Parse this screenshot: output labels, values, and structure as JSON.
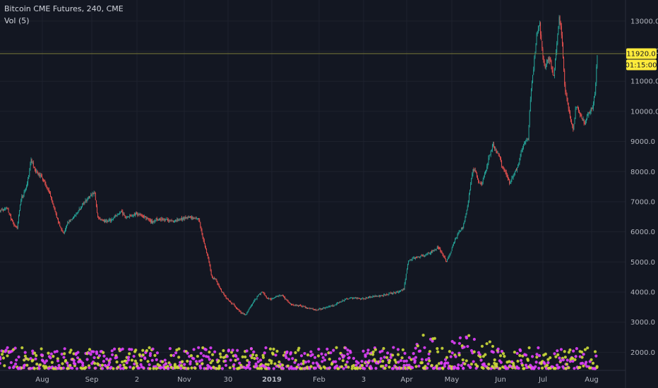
{
  "legend": {
    "title": "Bitcoin CME Futures, 240, CME",
    "volume": "Vol (5)"
  },
  "price_tag": {
    "value": "11920.0",
    "countdown": "01:15:00",
    "color": "#ffeb3b"
  },
  "colors": {
    "background": "#131722",
    "grid": "#1e222d",
    "up": "#26a69a",
    "down": "#ef5350",
    "volume_up": "#cddc39",
    "volume_down": "#e040fb",
    "last_price_line": "#7b7b3a"
  },
  "chart_data": {
    "type": "line",
    "y_axis": {
      "range": [
        1400,
        13700
      ],
      "ticks": [
        {
          "value": 2000,
          "label": "2000.0"
        },
        {
          "value": 3000,
          "label": "3000.0"
        },
        {
          "value": 4000,
          "label": "4000.0"
        },
        {
          "value": 5000,
          "label": "5000.0"
        },
        {
          "value": 6000,
          "label": "6000.0"
        },
        {
          "value": 7000,
          "label": "7000.0"
        },
        {
          "value": 8000,
          "label": "8000.0"
        },
        {
          "value": 9000,
          "label": "9000.0"
        },
        {
          "value": 10000,
          "label": "10000.0"
        },
        {
          "value": 11000,
          "label": "11000.0"
        },
        {
          "value": 12000,
          "label": "12000.0"
        },
        {
          "value": 13000,
          "label": "13000.0"
        }
      ]
    },
    "x_axis": {
      "range": [
        0,
        880
      ],
      "ticks": [
        {
          "label": "Aug",
          "pos": 60
        },
        {
          "label": "Sep",
          "pos": 130
        },
        {
          "label": "2",
          "pos": 194
        },
        {
          "label": "Nov",
          "pos": 261
        },
        {
          "label": "30",
          "pos": 323
        },
        {
          "label": "2019",
          "pos": 385
        },
        {
          "label": "Feb",
          "pos": 452
        },
        {
          "label": "3",
          "pos": 515
        },
        {
          "label": "Apr",
          "pos": 576
        },
        {
          "label": "May",
          "pos": 640
        },
        {
          "label": "Jun",
          "pos": 709
        },
        {
          "label": "Jul",
          "pos": 769
        },
        {
          "label": "Aug",
          "pos": 838
        }
      ]
    },
    "series": [
      {
        "points": [
          [
            0,
            6700
          ],
          [
            10,
            6800
          ],
          [
            18,
            6300
          ],
          [
            24,
            6100
          ],
          [
            30,
            7100
          ],
          [
            38,
            7500
          ],
          [
            44,
            8400
          ],
          [
            50,
            8000
          ],
          [
            56,
            7900
          ],
          [
            62,
            7700
          ],
          [
            68,
            7400
          ],
          [
            74,
            7000
          ],
          [
            80,
            6500
          ],
          [
            86,
            6100
          ],
          [
            90,
            5950
          ],
          [
            96,
            6300
          ],
          [
            104,
            6500
          ],
          [
            112,
            6750
          ],
          [
            120,
            7000
          ],
          [
            128,
            7200
          ],
          [
            134,
            7300
          ],
          [
            138,
            6500
          ],
          [
            144,
            6400
          ],
          [
            150,
            6350
          ],
          [
            158,
            6400
          ],
          [
            166,
            6600
          ],
          [
            172,
            6650
          ],
          [
            178,
            6500
          ],
          [
            186,
            6550
          ],
          [
            194,
            6600
          ],
          [
            202,
            6500
          ],
          [
            210,
            6450
          ],
          [
            216,
            6300
          ],
          [
            222,
            6450
          ],
          [
            228,
            6400
          ],
          [
            236,
            6400
          ],
          [
            244,
            6350
          ],
          [
            252,
            6400
          ],
          [
            260,
            6450
          ],
          [
            268,
            6500
          ],
          [
            276,
            6450
          ],
          [
            282,
            6400
          ],
          [
            288,
            5700
          ],
          [
            294,
            5200
          ],
          [
            300,
            4500
          ],
          [
            306,
            4400
          ],
          [
            312,
            4100
          ],
          [
            318,
            3900
          ],
          [
            324,
            3700
          ],
          [
            330,
            3600
          ],
          [
            336,
            3450
          ],
          [
            342,
            3300
          ],
          [
            348,
            3250
          ],
          [
            354,
            3500
          ],
          [
            360,
            3700
          ],
          [
            366,
            3900
          ],
          [
            372,
            4000
          ],
          [
            378,
            3800
          ],
          [
            384,
            3750
          ],
          [
            392,
            3850
          ],
          [
            400,
            3900
          ],
          [
            408,
            3650
          ],
          [
            416,
            3550
          ],
          [
            424,
            3550
          ],
          [
            432,
            3500
          ],
          [
            440,
            3450
          ],
          [
            448,
            3400
          ],
          [
            456,
            3450
          ],
          [
            464,
            3500
          ],
          [
            472,
            3550
          ],
          [
            480,
            3650
          ],
          [
            488,
            3750
          ],
          [
            496,
            3800
          ],
          [
            504,
            3800
          ],
          [
            512,
            3780
          ],
          [
            520,
            3820
          ],
          [
            528,
            3850
          ],
          [
            536,
            3870
          ],
          [
            544,
            3900
          ],
          [
            552,
            3950
          ],
          [
            560,
            3980
          ],
          [
            568,
            4050
          ],
          [
            572,
            4100
          ],
          [
            578,
            5000
          ],
          [
            584,
            5100
          ],
          [
            590,
            5150
          ],
          [
            596,
            5200
          ],
          [
            602,
            5200
          ],
          [
            608,
            5300
          ],
          [
            614,
            5350
          ],
          [
            620,
            5500
          ],
          [
            626,
            5300
          ],
          [
            632,
            5000
          ],
          [
            638,
            5300
          ],
          [
            644,
            5700
          ],
          [
            650,
            6000
          ],
          [
            656,
            6150
          ],
          [
            662,
            6800
          ],
          [
            666,
            7500
          ],
          [
            670,
            8100
          ],
          [
            674,
            8000
          ],
          [
            678,
            7600
          ],
          [
            682,
            7600
          ],
          [
            688,
            8050
          ],
          [
            694,
            8600
          ],
          [
            698,
            8900
          ],
          [
            702,
            8700
          ],
          [
            706,
            8600
          ],
          [
            712,
            8100
          ],
          [
            718,
            7900
          ],
          [
            722,
            7600
          ],
          [
            728,
            7900
          ],
          [
            734,
            8200
          ],
          [
            738,
            8700
          ],
          [
            742,
            8900
          ],
          [
            748,
            9100
          ],
          [
            752,
            10700
          ],
          [
            756,
            11500
          ],
          [
            760,
            12500
          ],
          [
            764,
            13000
          ],
          [
            768,
            12000
          ],
          [
            772,
            11400
          ],
          [
            776,
            11800
          ],
          [
            780,
            11600
          ],
          [
            784,
            11100
          ],
          [
            788,
            12100
          ],
          [
            792,
            13200
          ],
          [
            796,
            12400
          ],
          [
            800,
            10800
          ],
          [
            804,
            10300
          ],
          [
            808,
            9700
          ],
          [
            812,
            9400
          ],
          [
            816,
            10200
          ],
          [
            820,
            10000
          ],
          [
            824,
            9800
          ],
          [
            828,
            9600
          ],
          [
            832,
            9900
          ],
          [
            836,
            10000
          ],
          [
            840,
            10200
          ],
          [
            843,
            10700
          ],
          [
            846,
            11950
          ]
        ]
      }
    ],
    "volume": {
      "range": [
        0,
        1600
      ],
      "unit": "price axis overlay"
    }
  }
}
